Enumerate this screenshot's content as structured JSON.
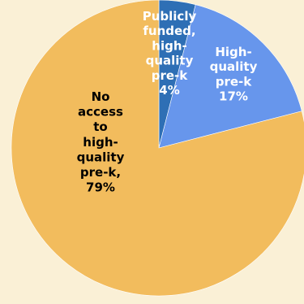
{
  "chart_data": {
    "type": "pie",
    "start_angle_deg": 0,
    "direction": "clockwise",
    "slices": [
      {
        "label_lines": [
          "Publicly",
          "funded,",
          "high-",
          "quality",
          "pre-k",
          "4%"
        ],
        "value": 4,
        "color": "#2e6fb5",
        "label_color": "#ffffff"
      },
      {
        "label_lines": [
          "High-",
          "quality",
          "pre-k",
          "17%"
        ],
        "value": 17,
        "color": "#6796ec",
        "label_color": "#ffffff"
      },
      {
        "label_lines": [
          "No",
          "access",
          "to",
          "high-",
          "quality",
          "pre-k,",
          "79%"
        ],
        "value": 79,
        "color": "#f2bc5d",
        "label_color": "#000000"
      }
    ]
  }
}
